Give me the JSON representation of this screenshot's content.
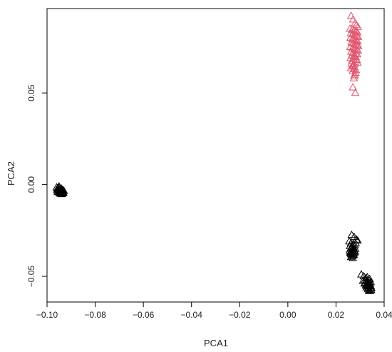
{
  "chart_data": {
    "type": "scatter",
    "title": "",
    "xlabel": "PCA1",
    "ylabel": "PCA2",
    "xlim": [
      -0.1,
      0.04
    ],
    "ylim": [
      -0.064,
      0.096
    ],
    "xticks": [
      {
        "value": -0.1,
        "label": "−0.10"
      },
      {
        "value": -0.08,
        "label": "−0.08"
      },
      {
        "value": -0.06,
        "label": "−0.06"
      },
      {
        "value": -0.04,
        "label": "−0.04"
      },
      {
        "value": -0.02,
        "label": "−0.02"
      },
      {
        "value": 0.0,
        "label": "0.00"
      },
      {
        "value": 0.02,
        "label": "0.02"
      },
      {
        "value": 0.04,
        "label": "0.04"
      }
    ],
    "yticks": [
      {
        "value": -0.05,
        "label": "−0.05"
      },
      {
        "value": 0.0,
        "label": "0.00"
      },
      {
        "value": 0.05,
        "label": "0.05"
      }
    ],
    "marker": "open-triangle",
    "grid": false,
    "legend": "none",
    "series": [
      {
        "color": "#DF536B",
        "x": [
          0.0263,
          0.0271,
          0.0279,
          0.0285,
          0.0291,
          0.0258,
          0.0267,
          0.0275,
          0.0283,
          0.0289,
          0.0262,
          0.027,
          0.0278,
          0.0286,
          0.0292,
          0.026,
          0.0268,
          0.0276,
          0.0284,
          0.029,
          0.0264,
          0.0272,
          0.028,
          0.0287,
          0.0293,
          0.0259,
          0.0269,
          0.0277,
          0.0285,
          0.0291,
          0.0263,
          0.0271,
          0.0281,
          0.0288,
          0.0266,
          0.0274,
          0.0282,
          0.0261,
          0.0273,
          0.0286,
          0.0267,
          0.0279,
          0.0289,
          0.0264,
          0.0276,
          0.0272,
          0.0268,
          0.0277,
          0.0262,
          0.0275,
          0.0283,
          0.027,
          0.0281,
          0.0278,
          0.0276,
          0.0274,
          0.027,
          0.028
        ],
        "y": [
          0.092,
          0.09,
          0.088,
          0.087,
          0.086,
          0.085,
          0.0845,
          0.084,
          0.0835,
          0.083,
          0.0825,
          0.082,
          0.0815,
          0.081,
          0.0805,
          0.08,
          0.0795,
          0.079,
          0.0785,
          0.078,
          0.0775,
          0.077,
          0.0765,
          0.076,
          0.0755,
          0.075,
          0.0745,
          0.074,
          0.0735,
          0.073,
          0.0725,
          0.072,
          0.0715,
          0.071,
          0.0705,
          0.07,
          0.0695,
          0.069,
          0.0685,
          0.068,
          0.0675,
          0.067,
          0.0665,
          0.066,
          0.0655,
          0.065,
          0.0645,
          0.064,
          0.0635,
          0.063,
          0.0625,
          0.062,
          0.061,
          0.06,
          0.059,
          0.058,
          0.053,
          0.05
        ]
      },
      {
        "color": "#000000",
        "x": [
          -0.096,
          -0.0955,
          -0.095,
          -0.0945,
          -0.094,
          -0.0935,
          -0.093,
          -0.0958,
          -0.0952,
          -0.0947,
          -0.0942,
          -0.0937,
          -0.0932,
          -0.0956,
          -0.0951,
          -0.0946,
          -0.0941,
          -0.0936,
          -0.0953,
          -0.0948,
          -0.0943,
          -0.0938,
          -0.0949,
          -0.0944,
          -0.0939,
          -0.0957,
          -0.0934,
          -0.0945,
          -0.095,
          -0.094
        ],
        "y": [
          -0.0015,
          -0.002,
          -0.0018,
          -0.0025,
          -0.0022,
          -0.003,
          -0.0035,
          -0.003,
          -0.0028,
          -0.0033,
          -0.0038,
          -0.0042,
          -0.0045,
          -0.004,
          -0.0035,
          -0.004,
          -0.0045,
          -0.0048,
          -0.0025,
          -0.0032,
          -0.0036,
          -0.004,
          -0.0045,
          -0.005,
          -0.0052,
          -0.0022,
          -0.003,
          -0.0042,
          -0.001,
          -0.0028
        ]
      },
      {
        "color": "#000000",
        "x": [
          0.0265,
          0.0275,
          0.0285,
          0.029,
          0.0255,
          0.0262,
          0.027,
          0.0278,
          0.0282,
          0.0258,
          0.0266,
          0.0273,
          0.028,
          0.026,
          0.0268,
          0.0276,
          0.0257,
          0.0264,
          0.0271,
          0.0279,
          0.0261,
          0.0269,
          0.0277,
          0.0263,
          0.0272,
          0.0259,
          0.0267,
          0.0274,
          0.0262,
          0.027,
          0.0266,
          0.0264
        ],
        "y": [
          -0.0275,
          -0.0285,
          -0.03,
          -0.0305,
          -0.031,
          -0.032,
          -0.0325,
          -0.033,
          -0.032,
          -0.0335,
          -0.034,
          -0.0345,
          -0.035,
          -0.035,
          -0.0355,
          -0.036,
          -0.036,
          -0.0365,
          -0.037,
          -0.0365,
          -0.0375,
          -0.0378,
          -0.0372,
          -0.038,
          -0.0385,
          -0.037,
          -0.039,
          -0.0382,
          -0.0395,
          -0.04,
          -0.036,
          -0.0345
        ]
      },
      {
        "color": "#000000",
        "x": [
          0.0305,
          0.0315,
          0.0325,
          0.033,
          0.034,
          0.032,
          0.0328,
          0.0336,
          0.0344,
          0.0312,
          0.0322,
          0.0332,
          0.0342,
          0.0318,
          0.0326,
          0.0334,
          0.034,
          0.0324,
          0.0331,
          0.0338,
          0.0345,
          0.0327,
          0.0335,
          0.0343,
          0.0333,
          0.0339,
          0.0346,
          0.0336,
          0.0341,
          0.033,
          0.0347,
          0.0329
        ],
        "y": [
          -0.049,
          -0.05,
          -0.051,
          -0.0505,
          -0.0515,
          -0.052,
          -0.0525,
          -0.052,
          -0.053,
          -0.0525,
          -0.0535,
          -0.053,
          -0.054,
          -0.054,
          -0.0545,
          -0.054,
          -0.0548,
          -0.055,
          -0.0555,
          -0.0552,
          -0.0555,
          -0.056,
          -0.0562,
          -0.0565,
          -0.057,
          -0.0572,
          -0.0575,
          -0.0578,
          -0.058,
          -0.0545,
          -0.0565,
          -0.0535
        ]
      }
    ]
  }
}
